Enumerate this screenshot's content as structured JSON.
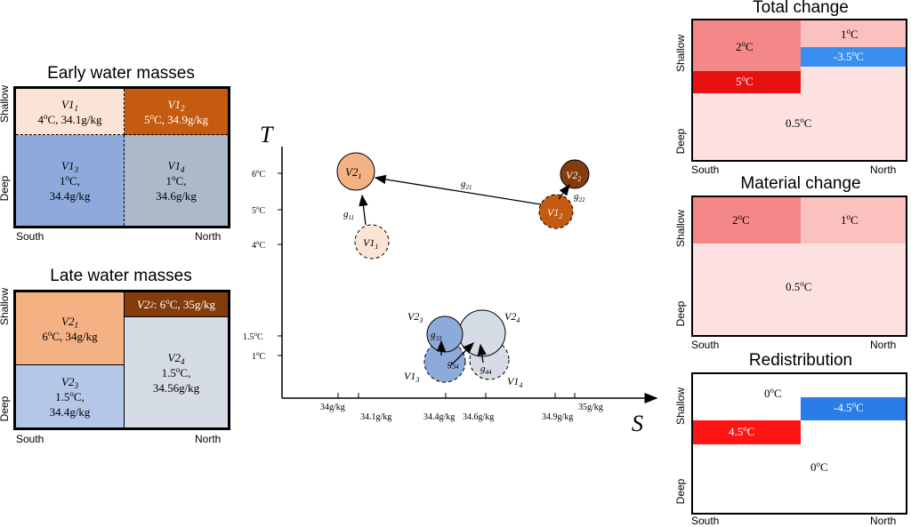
{
  "colors": {
    "early_v11": "#fbe4d5",
    "early_v12": "#c55a11",
    "early_v13": "#8eaadb",
    "early_v14": "#acb9ca",
    "late_v21": "#f4b183",
    "late_v22": "#843c0c",
    "late_v23": "#b4c7e7",
    "late_v24": "#d6dce5",
    "heat_2": "#f48888",
    "heat_1": "#fbc0c0",
    "heat_neg35": "#3a8ef0",
    "heat_5": "#e81010",
    "heat_05": "#fde0e0",
    "redis_neg45": "#2a7de8",
    "redis_45": "#ff1414"
  },
  "early": {
    "title": "Early water masses",
    "y_shallow": "Shallow",
    "y_deep": "Deep",
    "x_south": "South",
    "x_north": "North",
    "v11_name": "V1",
    "v11_sub": "1",
    "v11_sub2": "1",
    "v11_val": "4oC, 34.1g/kg",
    "v12_name": "V1",
    "v12_sub": "2",
    "v12_val": "5oC, 34.9g/kg",
    "v13_name": "V1",
    "v13_sub": "3",
    "v13_val1": "1oC,",
    "v13_val2": "34.4g/kg",
    "v14_name": "V1",
    "v14_sub": "4",
    "v14_val1": "1oC,",
    "v14_val2": "34.6g/kg"
  },
  "late": {
    "title": "Late water masses",
    "y_shallow": "Shallow",
    "y_deep": "Deep",
    "x_south": "South",
    "x_north": "North",
    "v21_name": "V2",
    "v21_sub": "1",
    "v21_val": "6oC, 34g/kg",
    "v22_name": "V2",
    "v22_sub": "2",
    "v22_val": ": 6oC, 35g/kg",
    "v23_name": "V2",
    "v23_sub": "3",
    "v23_val1": "1.5oC,",
    "v23_val2": "34.4g/kg",
    "v24_name": "V2",
    "v24_sub": "4",
    "v24_val1": "1.5oC,",
    "v24_val2": "34.56g/kg"
  },
  "ts": {
    "t_axis": "T",
    "s_axis": "S",
    "y_ticks": [
      "6oC",
      "5oC",
      "4oC",
      "1.5oC",
      "1oC"
    ],
    "x_ticks": [
      "34g/kg",
      "34.1g/kg",
      "34.4g/kg",
      "34.6g/kg",
      "34.9g/kg",
      "35g/kg"
    ],
    "circle_labels": [
      "V21",
      "V11",
      "V22",
      "V12",
      "V23",
      "V24",
      "V13",
      "V14"
    ],
    "arrow_labels": [
      "g11",
      "g21",
      "g22",
      "g33",
      "g34",
      "g44"
    ]
  },
  "total": {
    "title": "Total change",
    "y_shallow": "Shallow",
    "y_deep": "Deep",
    "x_south": "South",
    "x_north": "North",
    "a": "2oC",
    "b": "1oC",
    "c": "-3.5oC",
    "d": "5oC",
    "e": "0.5oC"
  },
  "material": {
    "title": "Material change",
    "y_shallow": "Shallow",
    "y_deep": "Deep",
    "x_south": "South",
    "x_north": "North",
    "a": "2oC",
    "b": "1oC",
    "c": "0.5oC"
  },
  "redis": {
    "title": "Redistribution",
    "y_shallow": "Shallow",
    "y_deep": "Deep",
    "x_south": "South",
    "x_north": "North",
    "a": "0oC",
    "b": "-4.5oC",
    "c": "4.5oC",
    "d": "0oC"
  }
}
